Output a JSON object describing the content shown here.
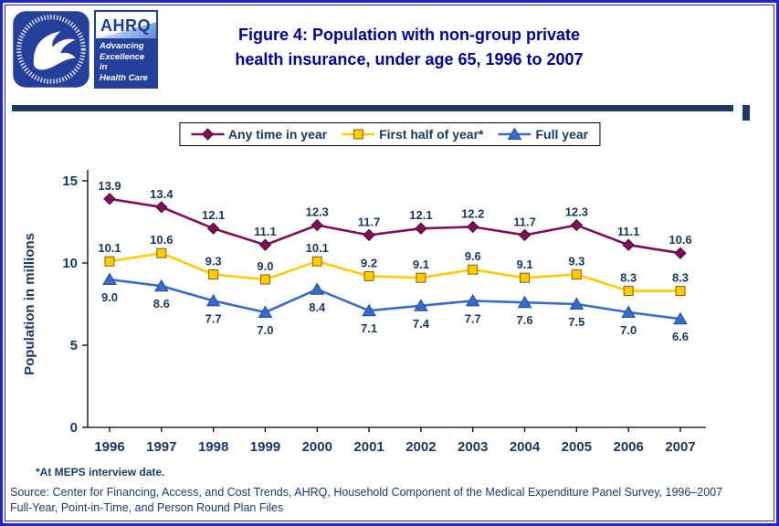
{
  "header": {
    "title_line1": "Figure 4: Population with non-group private",
    "title_line2": "health insurance, under age 65, 1996 to 2007",
    "ahrq": {
      "name": "AHRQ",
      "tagline": [
        "Advancing",
        "Excellence in",
        "Health Care"
      ]
    }
  },
  "chart_data": {
    "type": "line",
    "title": "Figure 4: Population with non-group private health insurance, under age 65, 1996 to 2007",
    "x": [
      1996,
      1997,
      1998,
      1999,
      2000,
      2001,
      2002,
      2003,
      2004,
      2005,
      2006,
      2007
    ],
    "series": [
      {
        "name": "Any time in year",
        "marker": "diamond",
        "color": "#7C1158",
        "edge": "#4A0A34",
        "label_position": "above",
        "values": [
          13.9,
          13.4,
          12.1,
          11.1,
          12.3,
          11.7,
          12.1,
          12.2,
          11.7,
          12.3,
          11.1,
          10.6
        ]
      },
      {
        "name": "First half of year*",
        "marker": "square",
        "color": "#FFCC00",
        "edge": "#806000",
        "label_position": "above",
        "values": [
          10.1,
          10.6,
          9.3,
          9.0,
          10.1,
          9.2,
          9.1,
          9.6,
          9.1,
          9.3,
          8.3,
          8.3
        ]
      },
      {
        "name": "Full year",
        "marker": "triangle",
        "color": "#3A6BC5",
        "edge": "#1F4E9C",
        "label_position": "below",
        "values": [
          9.0,
          8.6,
          7.7,
          7.0,
          8.4,
          7.1,
          7.4,
          7.7,
          7.6,
          7.5,
          7.0,
          6.6
        ]
      }
    ],
    "xlabel": "",
    "ylabel": "Population in millions",
    "ylim": [
      0,
      15
    ],
    "yticks": [
      0,
      5,
      10,
      15
    ],
    "grid": false,
    "legend_position": "top"
  },
  "footnote": "*At MEPS interview date.",
  "source": {
    "line1": "Source: Center for Financing, Access, and Cost Trends, AHRQ, Household Component of the Medical Expenditure Panel Survey, 1996–2007",
    "line2": "Full-Year, Point-in-Time, and Person Round Plan Files"
  }
}
